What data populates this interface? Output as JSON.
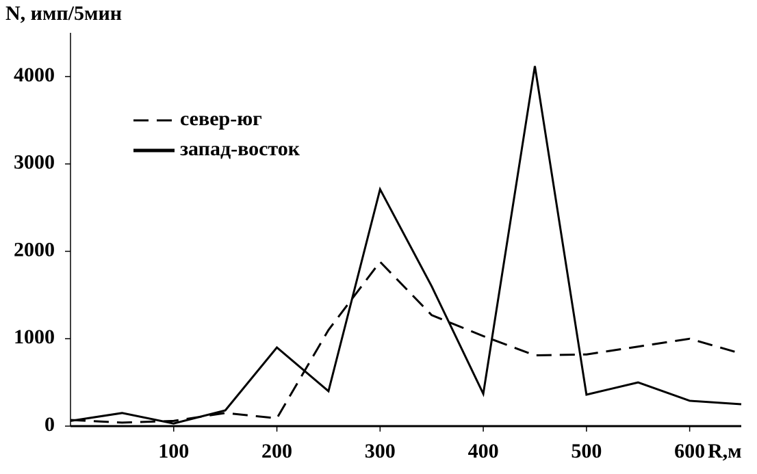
{
  "chart_data": {
    "type": "line",
    "y_label": "N, имп/5мин",
    "x_label": "R,м",
    "x": [
      0,
      50,
      100,
      150,
      200,
      250,
      300,
      350,
      400,
      450,
      500,
      550,
      600,
      650
    ],
    "series": [
      {
        "name": "север-юг",
        "color": "#000000",
        "dash": "dashed",
        "values": [
          70,
          40,
          60,
          150,
          90,
          1100,
          1880,
          1270,
          1030,
          810,
          820,
          910,
          1000,
          830
        ]
      },
      {
        "name": "запад-восток",
        "color": "#000000",
        "dash": "solid",
        "values": [
          60,
          150,
          30,
          180,
          900,
          400,
          2710,
          1600,
          370,
          4120,
          360,
          500,
          290,
          250
        ]
      }
    ],
    "xlim": [
      0,
      650
    ],
    "ylim": [
      0,
      4500
    ],
    "xticks": [
      100,
      200,
      300,
      400,
      500,
      600
    ],
    "yticks": [
      0,
      1000,
      2000,
      3000,
      4000
    ]
  }
}
